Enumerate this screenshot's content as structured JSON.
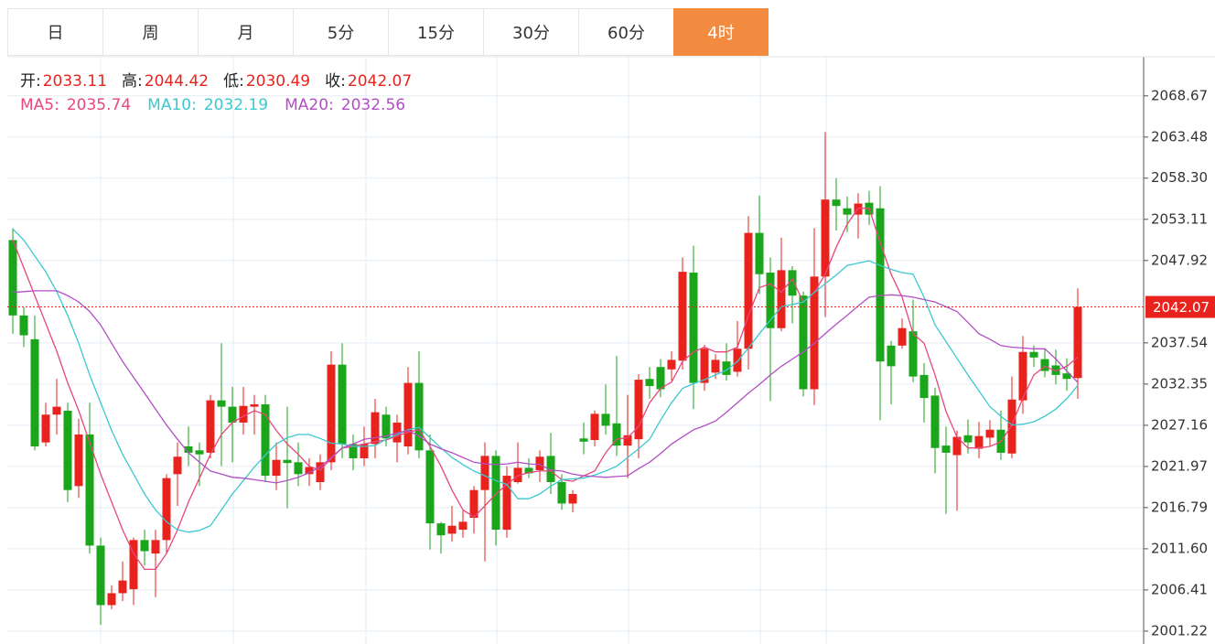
{
  "tabs": {
    "items": [
      "日",
      "周",
      "月",
      "5分",
      "15分",
      "30分",
      "60分",
      "4时"
    ],
    "active": 7
  },
  "chart_data": {
    "type": "candlestick",
    "ohlc_labels": [
      "开:",
      "高:",
      "低:",
      "收:"
    ],
    "up_color": "#e8231e",
    "down_color": "#1aa51a",
    "ylim": [
      1999.6,
      2073.6
    ],
    "yticks": [
      2068.67,
      {
        "value": 2063.48,
        "label": "2063.48"
      },
      {
        "value": 2058.3,
        "label": "2058.30"
      },
      2053.11,
      2047.92,
      2037.54,
      2032.35,
      2027.16,
      2021.97,
      2016.79,
      {
        "value": 2011.6,
        "label": "2011.60"
      },
      2006.41,
      2001.22
    ],
    "grid": true,
    "open": [
      2050.5,
      2041,
      2038,
      2025,
      2028.5,
      2029,
      2019.5,
      2026,
      2012,
      2004.5,
      2006,
      2006.5,
      2012.7,
      2011,
      2012.7,
      2021,
      2024.5,
      2024,
      2023.7,
      2030.3,
      2029.5,
      2027.5,
      2029.5,
      2029.8,
      2020.8,
      2022.8,
      2022.5,
      2021,
      2020,
      2022.5,
      2034.8,
      2024.8,
      2023,
      2024.8,
      2028.5,
      2025,
      2024.5,
      2032.5,
      2024,
      2014.8,
      2013.5,
      2014,
      2015.5,
      2019,
      2023.3,
      2014,
      2020,
      2021.8,
      2021.5,
      2023.3,
      2020,
      2017.3,
      2025.5,
      2025.3,
      2028.6,
      2027.4,
      2024.6,
      2025.4,
      2033,
      2034.5,
      2034.2,
      2035.3,
      2046.4,
      2032.5,
      2033.8,
      2035.2,
      2033.9,
      2036.8,
      2051.4,
      2046.4,
      2039.4,
      2046.7,
      2043.5,
      2031.7,
      2045.9,
      2055.6,
      2054.5,
      2053.7,
      2055.2,
      2054.5,
      2037.2,
      2037.2,
      2039,
      2033.5,
      2030.9,
      2024.6,
      2023.4,
      2025.9,
      2024.2,
      2025.6,
      2026.6,
      2023.6,
      2030.3,
      2036.4,
      2035.5,
      2034.7,
      2033.7,
      2033.11
    ],
    "high": [
      2052,
      2042,
      2041,
      2030,
      2033,
      2030,
      2028,
      2030,
      2013,
      2007,
      2010,
      2013,
      2014,
      2014,
      2021,
      2025,
      2027,
      2025,
      2031,
      2037.5,
      2032,
      2032,
      2031,
      2031,
      2025,
      2029.5,
      2025,
      2023,
      2023.5,
      2036.5,
      2037.5,
      2026,
      2027,
      2030.5,
      2029.5,
      2028.5,
      2034.5,
      2036.5,
      2026,
      2015,
      2017,
      2016.5,
      2019.5,
      2025,
      2024,
      2022,
      2025,
      2023,
      2024,
      2026.2,
      2021,
      2019,
      2027.5,
      2029,
      2032.3,
      2035.9,
      2031,
      2033.6,
      2034.5,
      2035.5,
      2036.5,
      2048.3,
      2049.8,
      2037.3,
      2036.1,
      2037.5,
      2040.3,
      2053.5,
      2056.1,
      2048.3,
      2050.8,
      2047.2,
      2044,
      2052,
      2064.1,
      2058.3,
      2056,
      2056.4,
      2056.7,
      2057.3,
      2037.8,
      2040.6,
      2043,
      2035,
      2031.9,
      2027,
      2026.5,
      2027.9,
      2027.6,
      2027.8,
      2029,
      2033.3,
      2038.4,
      2037.2,
      2036.8,
      2036.7,
      2035.6,
      2044.42
    ],
    "low": [
      2038.7,
      2037,
      2024,
      2024.5,
      2026,
      2017.5,
      2018,
      2011,
      2002,
      2004,
      2005,
      2004.5,
      2009.5,
      2005.5,
      2011,
      2017,
      2022,
      2019.5,
      2023,
      2022,
      2022.5,
      2026,
      2026,
      2020,
      2019,
      2016.7,
      2019.5,
      2019.5,
      2019,
      2021.5,
      2023,
      2021.5,
      2022,
      2023,
      2024.5,
      2022.5,
      2023.5,
      2023,
      2011.5,
      2011,
      2012.5,
      2013,
      2013.5,
      2010,
      2012,
      2013,
      2019.8,
      2020.5,
      2020,
      2018.5,
      2016.5,
      2016.2,
      2023.5,
      2024.5,
      2026,
      2023.3,
      2020.5,
      2023,
      2030.5,
      2030.7,
      2032.8,
      2034.2,
      2029.2,
      2031.5,
      2033,
      2032.8,
      2033.3,
      2034.2,
      2043.7,
      2030.2,
      2039,
      2040,
      2030.8,
      2029.7,
      2040.8,
      2051.7,
      2051.5,
      2050.7,
      2052.4,
      2027.8,
      2029.8,
      2036.8,
      2032.6,
      2027.5,
      2021.1,
      2016,
      2016.4,
      2023.6,
      2023,
      2024.5,
      2022.8,
      2023,
      2028.6,
      2034.5,
      2033.2,
      2032.3,
      2031.5,
      2030.49
    ],
    "close": [
      2041,
      2038.5,
      2024.5,
      2028.5,
      2029.5,
      2019,
      2026,
      2012,
      2004.5,
      2006,
      2007.6,
      2012.7,
      2011.3,
      2012.7,
      2020.5,
      2023.2,
      2023.7,
      2023.5,
      2030.3,
      2029.5,
      2027.5,
      2029.6,
      2029.8,
      2020.8,
      2022.8,
      2022.4,
      2021,
      2021.9,
      2022.5,
      2034.8,
      2024.8,
      2023,
      2024.8,
      2028.8,
      2025.5,
      2027.5,
      2032.5,
      2024,
      2014.8,
      2013.3,
      2014.5,
      2015,
      2019,
      2023.3,
      2014,
      2020.8,
      2021.8,
      2021.1,
      2023.2,
      2020,
      2017.3,
      2018.5,
      2025.1,
      2028.6,
      2027.1,
      2024.6,
      2025.9,
      2032.9,
      2032.1,
      2031.7,
      2035.4,
      2046.5,
      2032.5,
      2036.8,
      2035.4,
      2033.5,
      2036.8,
      2051.4,
      2046.2,
      2039.4,
      2046.7,
      2043.5,
      2031.7,
      2045.9,
      2055.6,
      2054.8,
      2053.7,
      2055.1,
      2053.7,
      2035.2,
      2034.6,
      2039.4,
      2033.3,
      2030.6,
      2024.3,
      2023.7,
      2025.7,
      2025,
      2025.8,
      2026.6,
      2023.7,
      2030.4,
      2036.4,
      2035.7,
      2034,
      2033.5,
      2033,
      2042.07
    ],
    "series": [
      {
        "name": "MA5:",
        "color": "#e8467c",
        "values": [
          2050.5,
          2047,
          2043.5,
          2040,
          2036.5,
          2032.5,
          2029,
          2025,
          2021,
          2017.5,
          2014,
          2011,
          2009,
          2009,
          2011,
          2014,
          2017.5,
          2020.5,
          2023.5,
          2026,
          2027.5,
          2028.3,
          2029,
          2028.5,
          2026.5,
          2024.8,
          2023.5,
          2022,
          2021.5,
          2023,
          2024.3,
          2024.5,
          2024.8,
          2025.1,
          2025.3,
          2025.8,
          2026.3,
          2026.6,
          2024.5,
          2022,
          2019,
          2016.5,
          2015.6,
          2017,
          2018.5,
          2019.7,
          2020.8,
          2021.2,
          2021.4,
          2021.4,
          2020.3,
          2020.1,
          2020.8,
          2021.4,
          2023.7,
          2025.4,
          2025.6,
          2027,
          2030,
          2031.8,
          2032.6,
          2035.2,
          2036.4,
          2037,
          2036.4,
          2036.4,
          2037,
          2041,
          2044.5,
          2045,
          2043.9,
          2045.6,
          2042.7,
          2043.9,
          2046.2,
          2049.6,
          2052.5,
          2054.5,
          2054.5,
          2050.2,
          2046.2,
          2043.3,
          2038.7,
          2037.5,
          2033.5,
          2028.9,
          2025.7,
          2024.3,
          2024.3,
          2024.5,
          2025.1,
          2027.2,
          2030.6,
          2033.5,
          2034.6,
          2034,
          2034.6,
          2035.74
        ]
      },
      {
        "name": "MA10:",
        "color": "#3cc8d0",
        "values": [
          2051.9,
          2050.5,
          2048.5,
          2046.5,
          2044,
          2041,
          2037.5,
          2033.5,
          2030,
          2026.5,
          2023.5,
          2021,
          2018.5,
          2016.5,
          2015,
          2014,
          2013.7,
          2013.9,
          2014.5,
          2016.5,
          2018.5,
          2020.2,
          2021.9,
          2023.4,
          2024.8,
          2025.6,
          2026,
          2026,
          2025.5,
          2024.9,
          2024.8,
          2024.5,
          2024.5,
          2024.6,
          2025.4,
          2026,
          2026.6,
          2026.9,
          2025.6,
          2024.3,
          2023.1,
          2022.2,
          2021.4,
          2020.8,
          2020.2,
          2019.7,
          2017.9,
          2017.9,
          2018.5,
          2019.5,
          2020.3,
          2020.4,
          2020.5,
          2020.9,
          2021.4,
          2022,
          2023.1,
          2024.2,
          2025.4,
          2027.8,
          2030,
          2031.8,
          2032.4,
          2032.9,
          2033.5,
          2034.1,
          2035.2,
          2036.9,
          2038.7,
          2040.4,
          2042.1,
          2042.4,
          2042.7,
          2043.9,
          2045,
          2046.1,
          2047.3,
          2047.6,
          2047.9,
          2047.3,
          2046.8,
          2046.4,
          2046.2,
          2043.3,
          2039.8,
          2037.7,
          2035.6,
          2033.5,
          2031.5,
          2029.5,
          2028.3,
          2027.2,
          2027.3,
          2027.6,
          2028.3,
          2029.2,
          2030.5,
          2032.19
        ]
      },
      {
        "name": "MA20:",
        "color": "#b14fc4",
        "values": [
          2043.9,
          2044,
          2044.1,
          2044.1,
          2044.1,
          2043.5,
          2042.7,
          2041.5,
          2039.8,
          2037.5,
          2035.2,
          2033.2,
          2031.2,
          2029.2,
          2027.2,
          2025.4,
          2023.7,
          2022.5,
          2021.4,
          2021,
          2020.6,
          2020.5,
          2020.3,
          2020.1,
          2019.9,
          2020.2,
          2020.6,
          2021.2,
          2021.9,
          2023.1,
          2024.3,
          2024.8,
          2025.4,
          2025.6,
          2025.8,
          2026.2,
          2026.5,
          2025.8,
          2024.8,
          2024.2,
          2023.7,
          2023.1,
          2022.5,
          2022.3,
          2022.2,
          2022.3,
          2022.5,
          2022.3,
          2022.2,
          2021.5,
          2021.4,
          2021,
          2020.8,
          2020.7,
          2020.6,
          2020.7,
          2020.8,
          2021.7,
          2022.5,
          2023.6,
          2024.8,
          2025.7,
          2026.6,
          2027.1,
          2027.7,
          2028.8,
          2030,
          2031.2,
          2032.3,
          2033.5,
          2034.6,
          2035.5,
          2036.4,
          2037.5,
          2038.7,
          2039.9,
          2041,
          2042.2,
          2043.3,
          2043.5,
          2043.6,
          2043.5,
          2043.3,
          2043,
          2042.7,
          2042.1,
          2041.5,
          2040.1,
          2038.7,
          2038,
          2037.2,
          2037,
          2036.9,
          2036.8,
          2036.8,
          2035.5,
          2034,
          2032.56
        ]
      }
    ]
  }
}
